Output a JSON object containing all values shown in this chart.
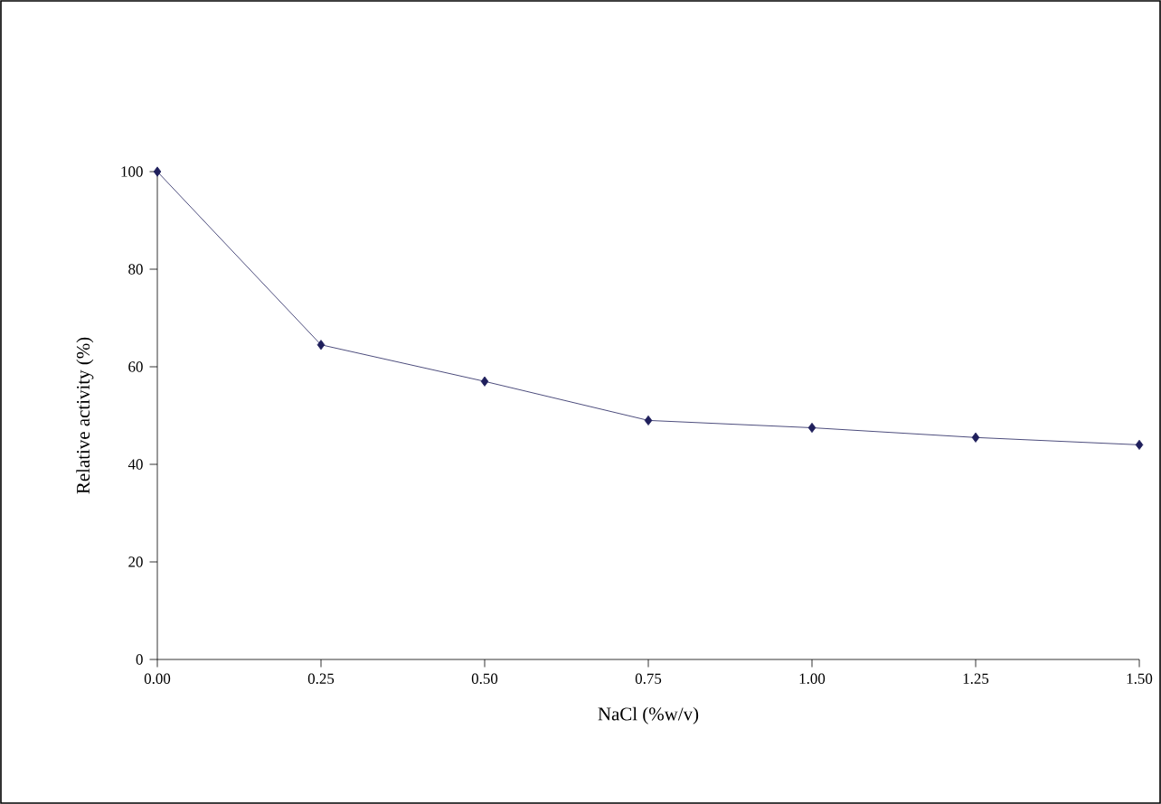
{
  "chart_data": {
    "type": "line",
    "xlabel": "NaCl (%w/v)",
    "ylabel": "Relative activity (%)",
    "x": [
      0,
      0.25,
      0.5,
      0.75,
      1.0,
      1.25,
      1.5
    ],
    "series": [
      {
        "color": "#1f1f5c",
        "values": [
          100,
          64.5,
          57,
          49,
          47.5,
          45.5,
          44
        ]
      }
    ],
    "xlim": [
      0,
      1.5
    ],
    "xticks": [
      {
        "value": 0,
        "label": "0.00"
      },
      {
        "value": 0.25,
        "label": "0.25"
      },
      {
        "value": 0.5,
        "label": "0.50"
      },
      {
        "value": 0.75,
        "label": "0.75"
      },
      {
        "value": 1.0,
        "label": "1.00"
      },
      {
        "value": 1.25,
        "label": "1.25"
      },
      {
        "value": 1.5,
        "label": "1.50"
      }
    ],
    "ylim": [
      0,
      100
    ],
    "yticks": [
      0,
      20,
      40,
      60,
      80,
      100
    ],
    "marker": "diamond",
    "line_style": "solid",
    "grid": false
  }
}
